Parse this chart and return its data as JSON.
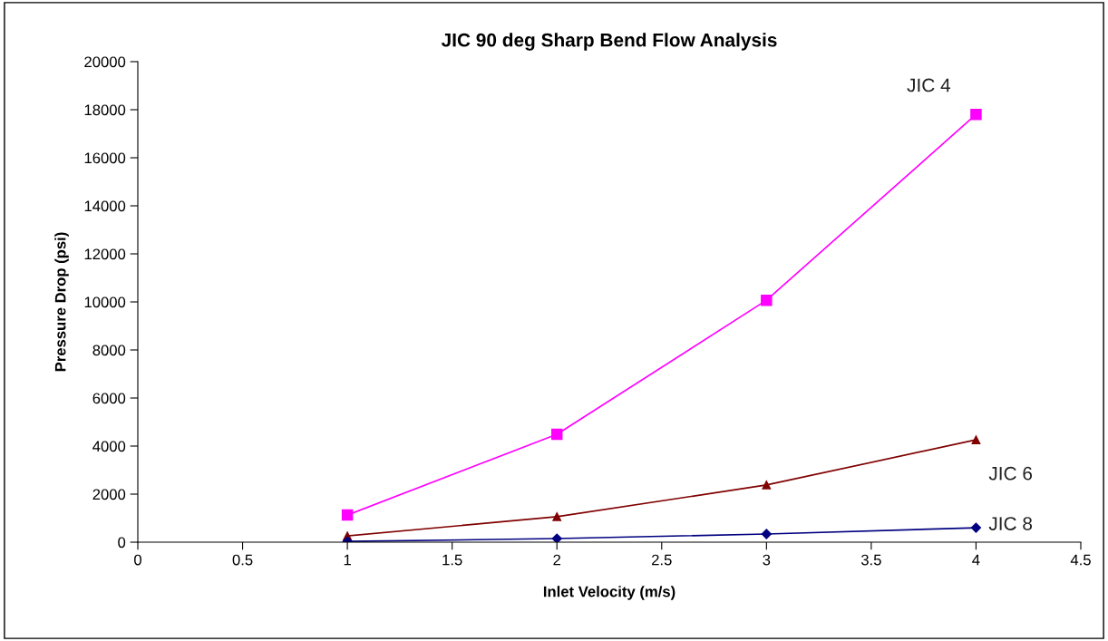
{
  "chart_data": {
    "type": "line",
    "title": "JIC 90 deg Sharp Bend Flow Analysis",
    "xlabel": "Inlet Velocity (m/s)",
    "ylabel": "Pressure Drop (psi)",
    "x": [
      1,
      2,
      3,
      4
    ],
    "series": [
      {
        "name": "JIC 4",
        "color": "#ff00ff",
        "marker": "square",
        "values": [
          1130,
          4490,
          10070,
          17800
        ]
      },
      {
        "name": "JIC 6",
        "color": "#800000",
        "marker": "triangle",
        "values": [
          260,
          1060,
          2380,
          4260
        ]
      },
      {
        "name": "JIC 8",
        "color": "#000080",
        "marker": "diamond",
        "values": [
          30,
          150,
          340,
          600
        ]
      }
    ],
    "xlim": [
      0,
      4.5
    ],
    "xticks": [
      0,
      0.5,
      1,
      1.5,
      2,
      2.5,
      3,
      3.5,
      4,
      4.5
    ],
    "ylim": [
      0,
      20000
    ],
    "yticks": [
      0,
      2000,
      4000,
      6000,
      8000,
      10000,
      12000,
      14000,
      16000,
      18000,
      20000
    ],
    "grid": false,
    "legend": false
  }
}
